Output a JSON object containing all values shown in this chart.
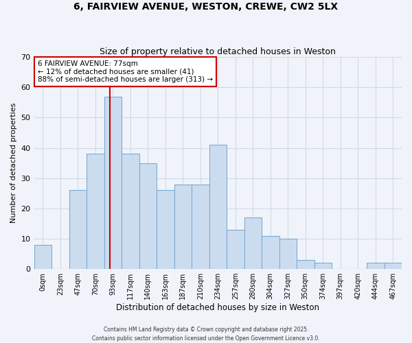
{
  "title1": "6, FAIRVIEW AVENUE, WESTON, CREWE, CW2 5LX",
  "title2": "Size of property relative to detached houses in Weston",
  "xlabel": "Distribution of detached houses by size in Weston",
  "ylabel": "Number of detached properties",
  "bin_labels": [
    "0sqm",
    "23sqm",
    "47sqm",
    "70sqm",
    "93sqm",
    "117sqm",
    "140sqm",
    "163sqm",
    "187sqm",
    "210sqm",
    "234sqm",
    "257sqm",
    "280sqm",
    "304sqm",
    "327sqm",
    "350sqm",
    "374sqm",
    "397sqm",
    "420sqm",
    "444sqm",
    "467sqm"
  ],
  "bar_heights": [
    8,
    0,
    26,
    38,
    57,
    38,
    35,
    26,
    28,
    28,
    41,
    13,
    17,
    11,
    10,
    3,
    2,
    0,
    0,
    2,
    2
  ],
  "bar_color": "#ccdcef",
  "bar_edge_color": "#7aabd4",
  "bar_width": 1.0,
  "red_line_x": 3.84,
  "annotation_text": "6 FAIRVIEW AVENUE: 77sqm\n← 12% of detached houses are smaller (41)\n88% of semi-detached houses are larger (313) →",
  "annotation_box_color": "#ffffff",
  "annotation_box_edge": "#cc0000",
  "ylim": [
    0,
    70
  ],
  "yticks": [
    0,
    10,
    20,
    30,
    40,
    50,
    60,
    70
  ],
  "background_color": "#f0f4fa",
  "plot_bg_color": "#f0f4fa",
  "grid_color": "#d0d8e8",
  "footer1": "Contains HM Land Registry data © Crown copyright and database right 2025.",
  "footer2": "Contains public sector information licensed under the Open Government Licence v3.0."
}
